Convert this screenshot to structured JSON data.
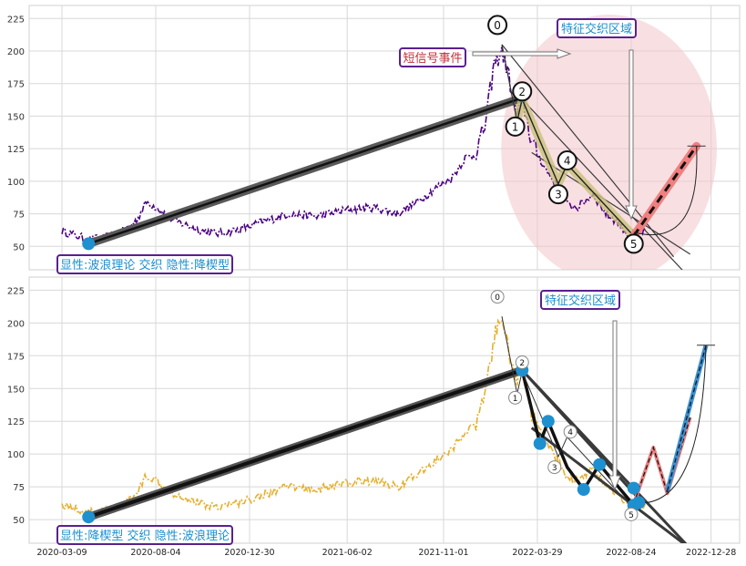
{
  "chart_data": [
    {
      "type": "line",
      "panel": "top",
      "yticks": [
        50,
        75,
        100,
        125,
        150,
        175,
        200,
        225
      ],
      "ylim": [
        32,
        235
      ],
      "grid": true,
      "price_color": "#4b0082",
      "price_anchors": [
        [
          "2020-03-09",
          62
        ],
        [
          "2020-04-20",
          55
        ],
        [
          "2020-05-20",
          57
        ],
        [
          "2020-06-15",
          62
        ],
        [
          "2020-07-05",
          70
        ],
        [
          "2020-07-20",
          84
        ],
        [
          "2020-08-05",
          80
        ],
        [
          "2020-09-01",
          70
        ],
        [
          "2020-10-15",
          62
        ],
        [
          "2020-11-10",
          60
        ],
        [
          "2020-12-15",
          63
        ],
        [
          "2021-01-15",
          68
        ],
        [
          "2021-03-01",
          75
        ],
        [
          "2021-04-15",
          73
        ],
        [
          "2021-06-01",
          78
        ],
        [
          "2021-07-15",
          80
        ],
        [
          "2021-08-20",
          75
        ],
        [
          "2021-09-20",
          84
        ],
        [
          "2021-10-20",
          95
        ],
        [
          "2021-11-15",
          103
        ],
        [
          "2021-12-05",
          118
        ],
        [
          "2021-12-20",
          120
        ],
        [
          "2022-01-05",
          142
        ],
        [
          "2022-01-20",
          190
        ],
        [
          "2022-02-01",
          200
        ],
        [
          "2022-02-10",
          185
        ],
        [
          "2022-02-25",
          150
        ],
        [
          "2022-03-05",
          165
        ],
        [
          "2022-03-20",
          130
        ],
        [
          "2022-04-10",
          110
        ],
        [
          "2022-05-01",
          95
        ],
        [
          "2022-05-15",
          82
        ],
        [
          "2022-06-01",
          80
        ],
        [
          "2022-06-25",
          90
        ],
        [
          "2022-07-15",
          75
        ],
        [
          "2022-08-05",
          68
        ],
        [
          "2022-08-20",
          58
        ],
        [
          "2022-09-05",
          60
        ],
        [
          "2022-09-15",
          62
        ]
      ],
      "wave_points": [
        {
          "label": "0",
          "date": "2022-02-01",
          "value": 205
        },
        {
          "label": "1",
          "date": "2022-02-25",
          "value": 146
        },
        {
          "label": "2",
          "date": "2022-03-05",
          "value": 163
        },
        {
          "label": "3",
          "date": "2022-05-01",
          "value": 98
        },
        {
          "label": "4",
          "date": "2022-05-15",
          "value": 113
        },
        {
          "label": "5",
          "date": "2022-08-28",
          "value": 58
        }
      ],
      "label_positions": {
        "0": [
          "2022-01-25",
          220
        ],
        "1": [
          "2022-02-22",
          142
        ],
        "2": [
          "2022-03-05",
          169
        ],
        "3": [
          "2022-05-01",
          90
        ],
        "4": [
          "2022-05-15",
          116
        ],
        "5": [
          "2022-08-28",
          52
        ]
      },
      "trend_line": [
        [
          "2020-04-20",
          52
        ],
        [
          "2022-03-05",
          164
        ]
      ],
      "channel_lines": [
        [
          [
            "2022-03-05",
            163
          ],
          [
            "2022-11-20",
            28
          ]
        ],
        [
          [
            "2022-02-01",
            205
          ],
          [
            "2022-10-30",
            42
          ]
        ],
        [
          [
            "2022-03-20",
            122
          ],
          [
            "2022-11-25",
            44
          ]
        ]
      ],
      "projection_arrow": [
        [
          "2022-08-28",
          58
        ],
        [
          "2022-12-05",
          127
        ]
      ],
      "projection_color": "#f08080",
      "ellipse": {
        "center": [
          "2022-07-20",
          125
        ],
        "rx_days": 170,
        "ry_value": 103
      },
      "annotations": {
        "signal_event": "短信号事件",
        "feature_zone": "特征交织区域",
        "pattern_label": "显性:波浪理论 交织 隐性:降楔型"
      }
    },
    {
      "type": "line",
      "panel": "bottom",
      "yticks": [
        50,
        75,
        100,
        125,
        150,
        175,
        200,
        225
      ],
      "ylim": [
        32,
        235
      ],
      "grid": true,
      "price_color": "#e6b030",
      "xticks": [
        "2020-03-09",
        "2020-08-04",
        "2020-12-30",
        "2021-06-02",
        "2021-11-01",
        "2022-03-29",
        "2022-08-24",
        "2022-12-28"
      ],
      "wave_points": [
        {
          "label": "0",
          "date": "2022-02-01",
          "value": 205
        },
        {
          "label": "1",
          "date": "2022-02-25",
          "value": 146
        },
        {
          "label": "2",
          "date": "2022-03-05",
          "value": 163
        },
        {
          "label": "3",
          "date": "2022-05-01",
          "value": 98
        },
        {
          "label": "4",
          "date": "2022-05-15",
          "value": 113
        },
        {
          "label": "5",
          "date": "2022-08-28",
          "value": 58
        }
      ],
      "label_positions": {
        "0": [
          "2022-01-25",
          220
        ],
        "1": [
          "2022-02-22",
          143
        ],
        "2": [
          "2022-03-05",
          170
        ],
        "3": [
          "2022-04-25",
          90
        ],
        "4": [
          "2022-05-20",
          117
        ],
        "5": [
          "2022-08-24",
          54
        ]
      },
      "markers": [
        [
          "2020-04-20",
          52
        ],
        [
          "2022-03-05",
          164
        ],
        [
          "2022-04-02",
          108
        ],
        [
          "2022-04-15",
          125
        ],
        [
          "2022-06-10",
          73
        ],
        [
          "2022-07-05",
          92
        ],
        [
          "2022-08-28",
          74
        ],
        [
          "2022-08-28",
          61
        ],
        [
          "2022-09-05",
          63
        ]
      ],
      "zigzag": [
        [
          "2022-03-05",
          164
        ],
        [
          "2022-04-02",
          108
        ],
        [
          "2022-04-15",
          125
        ],
        [
          "2022-05-15",
          90
        ],
        [
          "2022-06-10",
          73
        ],
        [
          "2022-07-05",
          92
        ],
        [
          "2022-08-28",
          61
        ]
      ],
      "trend_line": [
        [
          "2020-04-20",
          52
        ],
        [
          "2022-03-05",
          164
        ]
      ],
      "channel_lines": [
        [
          [
            "2022-03-05",
            164
          ],
          [
            "2022-09-05",
            66
          ]
        ],
        [
          [
            "2022-03-05",
            164
          ],
          [
            "2022-11-25",
            28
          ]
        ],
        [
          [
            "2022-03-20",
            120
          ],
          [
            "2022-11-25",
            28
          ]
        ]
      ],
      "projection_red": [
        [
          "2022-08-28",
          62
        ],
        [
          "2022-09-28",
          105
        ],
        [
          "2022-10-20",
          70
        ],
        [
          "2022-11-25",
          128
        ]
      ],
      "projection_blue": [
        [
          "2022-10-20",
          72
        ],
        [
          "2022-12-20",
          183
        ]
      ],
      "annotations": {
        "feature_zone": "特征交织区域",
        "pattern_label": "显性:降楔型 交织 隐性:波浪理论"
      }
    }
  ]
}
